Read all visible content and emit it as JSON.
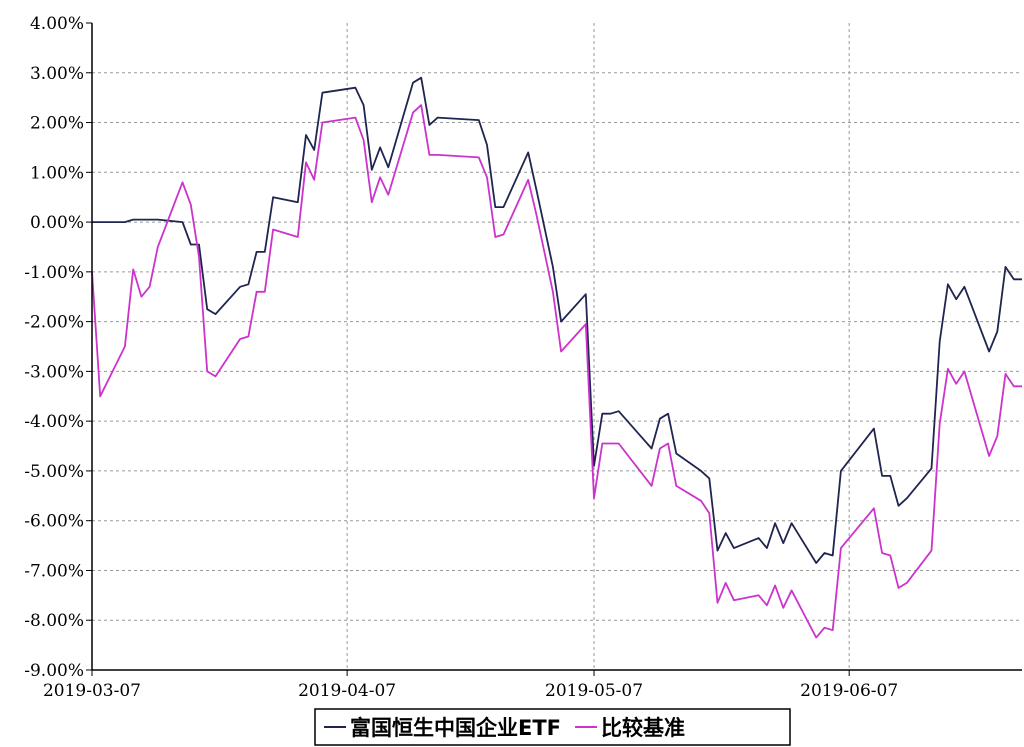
{
  "chart_data": {
    "type": "line",
    "title": "",
    "xlabel": "",
    "ylabel": "",
    "x_ticks": [
      "2019-03-07",
      "2019-04-07",
      "2019-05-07",
      "2019-06-07"
    ],
    "y_ticks": [
      "4.00%",
      "3.00%",
      "2.00%",
      "1.00%",
      "0.00%",
      "-1.00%",
      "-2.00%",
      "-3.00%",
      "-4.00%",
      "-5.00%",
      "-6.00%",
      "-7.00%",
      "-8.00%",
      "-9.00%"
    ],
    "ylim": [
      -9,
      4
    ],
    "xlim": [
      "2019-03-07",
      "2019-06-28"
    ],
    "grid": true,
    "legend_position": "bottom",
    "series": [
      {
        "name": "富国恒生中国企业ETF",
        "color": "#1f2550",
        "x": [
          "2019-03-07",
          "2019-03-08",
          "2019-03-11",
          "2019-03-12",
          "2019-03-13",
          "2019-03-14",
          "2019-03-15",
          "2019-03-18",
          "2019-03-19",
          "2019-03-20",
          "2019-03-21",
          "2019-03-22",
          "2019-03-25",
          "2019-03-26",
          "2019-03-27",
          "2019-03-28",
          "2019-03-29",
          "2019-04-01",
          "2019-04-02",
          "2019-04-03",
          "2019-04-04",
          "2019-04-08",
          "2019-04-09",
          "2019-04-10",
          "2019-04-11",
          "2019-04-12",
          "2019-04-15",
          "2019-04-16",
          "2019-04-17",
          "2019-04-18",
          "2019-04-23",
          "2019-04-24",
          "2019-04-25",
          "2019-04-26",
          "2019-04-29",
          "2019-04-30",
          "2019-05-02",
          "2019-05-03",
          "2019-05-06",
          "2019-05-07",
          "2019-05-08",
          "2019-05-09",
          "2019-05-10",
          "2019-05-14",
          "2019-05-15",
          "2019-05-16",
          "2019-05-17",
          "2019-05-20",
          "2019-05-21",
          "2019-05-22",
          "2019-05-23",
          "2019-05-24",
          "2019-05-27",
          "2019-05-28",
          "2019-05-29",
          "2019-05-30",
          "2019-05-31",
          "2019-06-03",
          "2019-06-04",
          "2019-06-05",
          "2019-06-06",
          "2019-06-10",
          "2019-06-11",
          "2019-06-12",
          "2019-06-13",
          "2019-06-14",
          "2019-06-17",
          "2019-06-18",
          "2019-06-19",
          "2019-06-20",
          "2019-06-21",
          "2019-06-24",
          "2019-06-25",
          "2019-06-26",
          "2019-06-27",
          "2019-06-28"
        ],
        "values": [
          0.0,
          0.0,
          0.0,
          0.05,
          0.05,
          0.05,
          0.05,
          0.0,
          -0.45,
          -0.45,
          -1.75,
          -1.85,
          -1.3,
          -1.25,
          -0.6,
          -0.6,
          0.5,
          0.4,
          1.75,
          1.45,
          2.6,
          2.7,
          2.35,
          1.05,
          1.5,
          1.1,
          2.8,
          2.9,
          1.95,
          2.1,
          2.05,
          1.55,
          0.3,
          0.3,
          1.4,
          0.65,
          -0.9,
          -2.0,
          -1.45,
          -4.9,
          -3.85,
          -3.85,
          -3.8,
          -4.55,
          -3.95,
          -3.85,
          -4.65,
          -5.0,
          -5.15,
          -6.6,
          -6.25,
          -6.55,
          -6.35,
          -6.55,
          -6.05,
          -6.45,
          -6.05,
          -6.85,
          -6.65,
          -6.7,
          -5.0,
          -4.15,
          -5.1,
          -5.1,
          -5.7,
          -5.55,
          -4.95,
          -2.4,
          -1.25,
          -1.55,
          -1.3,
          -2.6,
          -2.2,
          -0.9,
          -1.15,
          -1.15
        ]
      },
      {
        "name": "比较基准",
        "color": "#cc33cc",
        "x": [
          "2019-03-07",
          "2019-03-08",
          "2019-03-11",
          "2019-03-12",
          "2019-03-13",
          "2019-03-14",
          "2019-03-15",
          "2019-03-18",
          "2019-03-19",
          "2019-03-20",
          "2019-03-21",
          "2019-03-22",
          "2019-03-25",
          "2019-03-26",
          "2019-03-27",
          "2019-03-28",
          "2019-03-29",
          "2019-04-01",
          "2019-04-02",
          "2019-04-03",
          "2019-04-04",
          "2019-04-08",
          "2019-04-09",
          "2019-04-10",
          "2019-04-11",
          "2019-04-12",
          "2019-04-15",
          "2019-04-16",
          "2019-04-17",
          "2019-04-18",
          "2019-04-23",
          "2019-04-24",
          "2019-04-25",
          "2019-04-26",
          "2019-04-29",
          "2019-04-30",
          "2019-05-02",
          "2019-05-03",
          "2019-05-06",
          "2019-05-07",
          "2019-05-08",
          "2019-05-09",
          "2019-05-10",
          "2019-05-14",
          "2019-05-15",
          "2019-05-16",
          "2019-05-17",
          "2019-05-20",
          "2019-05-21",
          "2019-05-22",
          "2019-05-23",
          "2019-05-24",
          "2019-05-27",
          "2019-05-28",
          "2019-05-29",
          "2019-05-30",
          "2019-05-31",
          "2019-06-03",
          "2019-06-04",
          "2019-06-05",
          "2019-06-06",
          "2019-06-10",
          "2019-06-11",
          "2019-06-12",
          "2019-06-13",
          "2019-06-14",
          "2019-06-17",
          "2019-06-18",
          "2019-06-19",
          "2019-06-20",
          "2019-06-21",
          "2019-06-24",
          "2019-06-25",
          "2019-06-26",
          "2019-06-27",
          "2019-06-28"
        ],
        "values": [
          -1.0,
          -3.5,
          -2.5,
          -0.95,
          -1.5,
          -1.3,
          -0.5,
          0.8,
          0.35,
          -0.7,
          -3.0,
          -3.1,
          -2.35,
          -2.3,
          -1.4,
          -1.4,
          -0.15,
          -0.3,
          1.2,
          0.85,
          2.0,
          2.1,
          1.65,
          0.4,
          0.9,
          0.55,
          2.2,
          2.35,
          1.35,
          1.35,
          1.3,
          0.9,
          -0.3,
          -0.25,
          0.85,
          0.15,
          -1.4,
          -2.6,
          -2.05,
          -5.55,
          -4.45,
          -4.45,
          -4.45,
          -5.3,
          -4.55,
          -4.45,
          -5.3,
          -5.6,
          -5.85,
          -7.65,
          -7.25,
          -7.6,
          -7.5,
          -7.7,
          -7.3,
          -7.75,
          -7.4,
          -8.35,
          -8.15,
          -8.2,
          -6.55,
          -5.75,
          -6.65,
          -6.7,
          -7.35,
          -7.25,
          -6.6,
          -4.05,
          -2.95,
          -3.25,
          -3.0,
          -4.7,
          -4.3,
          -3.05,
          -3.3,
          -3.3
        ]
      }
    ]
  }
}
